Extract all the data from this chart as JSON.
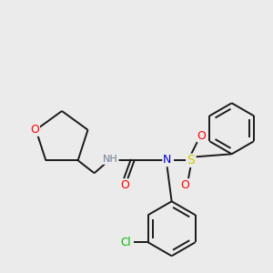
{
  "background_color": "#ebebeb",
  "bond_color": "#1a1a1a",
  "atom_colors": {
    "O": "#ff0000",
    "N": "#0000cc",
    "S": "#cccc00",
    "Cl": "#00bb00",
    "H": "#708090",
    "C": "#1a1a1a"
  },
  "figsize": [
    3.0,
    3.0
  ],
  "dpi": 100
}
